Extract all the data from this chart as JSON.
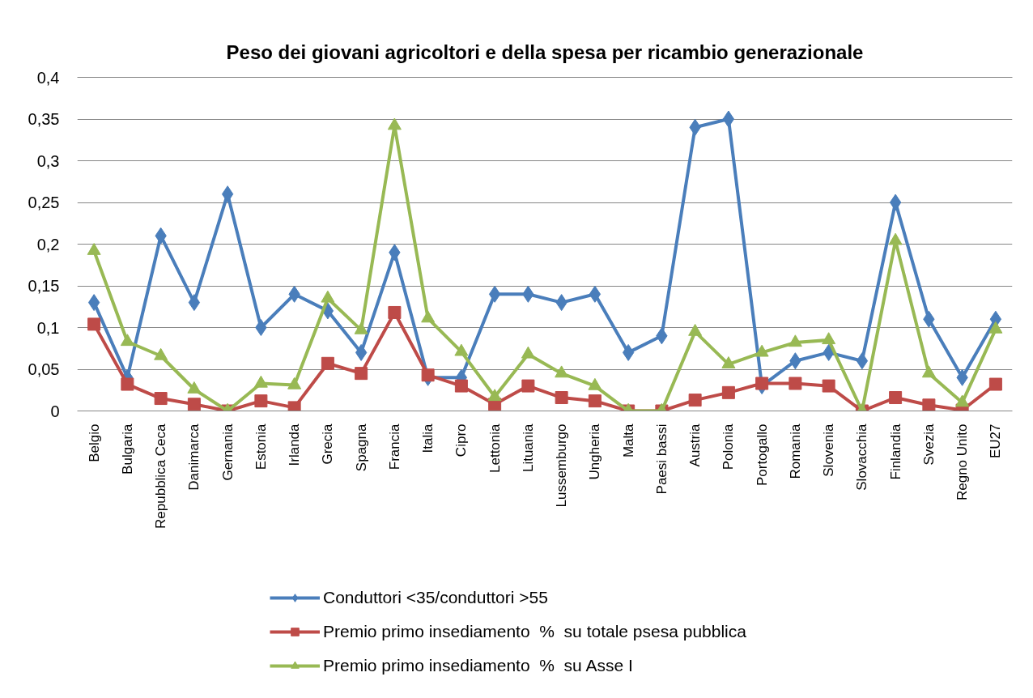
{
  "chart_data": {
    "type": "line",
    "title": "Peso dei giovani agricoltori e della spesa per ricambio generazionale",
    "categories": [
      "Belgio",
      "Bulgaria",
      "Repubblica Ceca",
      "Danimarca",
      "Gernania",
      "Estonia",
      "Irlanda",
      "Grecia",
      "Spagna",
      "Francia",
      "Italia",
      "Cipro",
      "Lettonia",
      "Lituania",
      "Lussemburgo",
      "Ungheria",
      "Malta",
      "Paesi bassi",
      "Austria",
      "Polonia",
      "Portogallo",
      "Romania",
      "Slovenia",
      "Slovacchia",
      "Finlandia",
      "Svezia",
      "Regno Unito",
      "EU27"
    ],
    "series": [
      {
        "name": "Conduttori <35/conduttori >55",
        "color": "#4a7ebb",
        "marker": "diamond",
        "values": [
          0.13,
          0.04,
          0.21,
          0.13,
          0.26,
          0.1,
          0.14,
          0.12,
          0.07,
          0.19,
          0.04,
          0.04,
          0.14,
          0.14,
          0.13,
          0.14,
          0.07,
          0.09,
          0.34,
          0.35,
          0.03,
          0.06,
          0.07,
          0.06,
          0.25,
          0.11,
          0.04,
          0.11
        ]
      },
      {
        "name": "Premio primo insediamento  %  su totale psesa pubblica",
        "color": "#be4b48",
        "marker": "square",
        "values": [
          0.104,
          0.032,
          0.015,
          0.008,
          0,
          0.012,
          0.004,
          0.057,
          0.045,
          0.118,
          0.043,
          0.03,
          0.008,
          0.03,
          0.016,
          0.012,
          0,
          0,
          0.013,
          0.022,
          0.033,
          0.033,
          0.03,
          0,
          0.016,
          0.007,
          0.001,
          0.032
        ]
      },
      {
        "name": "Premio primo insediamento  %  su Asse I",
        "color": "#98b954",
        "marker": "triangle",
        "values": [
          0.192,
          0.083,
          0.066,
          0.026,
          0,
          0.033,
          0.031,
          0.135,
          0.097,
          0.342,
          0.111,
          0.071,
          0.017,
          0.068,
          0.045,
          0.03,
          0,
          0,
          0.095,
          0.056,
          0.07,
          0.082,
          0.085,
          0,
          0.204,
          0.045,
          0.01,
          0.098
        ]
      }
    ],
    "ylim": [
      0,
      0.4
    ],
    "yticks": [
      0,
      {
        "value": 0.05,
        "label": "0,05"
      },
      {
        "value": 0.1,
        "label": "0,1"
      },
      {
        "value": 0.15,
        "label": "0,15"
      },
      {
        "value": 0.2,
        "label": "0,2"
      },
      {
        "value": 0.25,
        "label": "0,25"
      },
      {
        "value": 0.3,
        "label": "0,3"
      },
      {
        "value": 0.35,
        "label": "0,35"
      },
      {
        "value": 0.4,
        "label": "0,4"
      }
    ],
    "grid": "y",
    "legend": "bottom"
  }
}
